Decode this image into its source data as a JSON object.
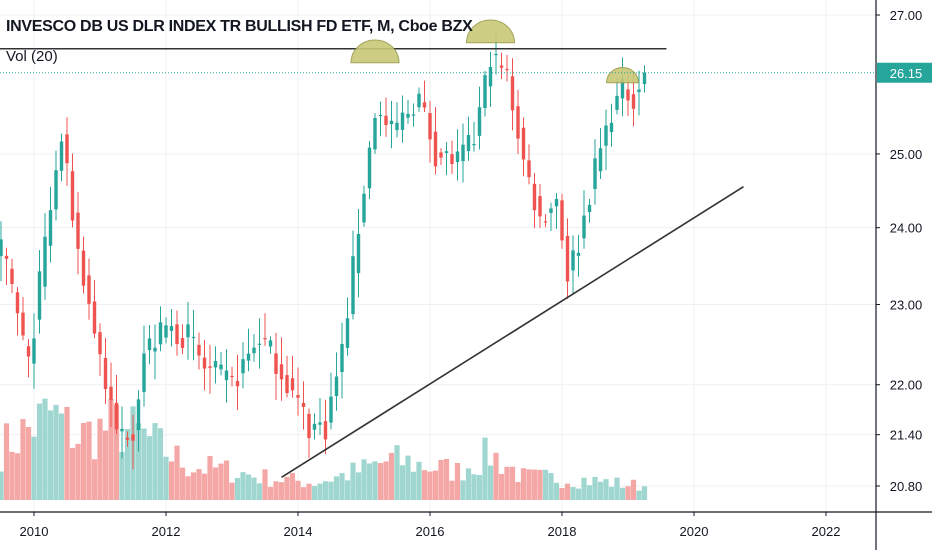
{
  "header": {
    "title": "INVESCO DB US DLR INDEX TR BULLISH FD ETF, M, Cboe BZX",
    "volume_label": "Vol (20)"
  },
  "colors": {
    "up": "#26a69a",
    "down": "#ef5350",
    "vol_up": "#9fd7d0",
    "vol_down": "#f5a7a6",
    "price_badge": "#26a69a",
    "marker_fill": "#c8c876",
    "drawing_line": "#333333",
    "grid": "#eef0f3"
  },
  "chart_data": {
    "type": "candlestick",
    "y_axis": {
      "ticks": [
        {
          "value": 27.0,
          "label": "27.00"
        },
        {
          "value": 25.0,
          "label": "25.00"
        },
        {
          "value": 24.0,
          "label": "24.00"
        },
        {
          "value": 23.0,
          "label": "23.00"
        },
        {
          "value": 22.0,
          "label": "22.00"
        },
        {
          "value": 21.4,
          "label": "21.40"
        },
        {
          "value": 20.8,
          "label": "20.80"
        }
      ],
      "scale": "log"
    },
    "x_axis": {
      "ticks": [
        "2010",
        "2012",
        "2014",
        "2016",
        "2018",
        "2020",
        "2022"
      ]
    },
    "last_price": {
      "value": 26.15,
      "label": "26.15"
    },
    "resistance_level": 26.5,
    "trendline": {
      "start": {
        "date": "2013-10",
        "price": 20.9
      },
      "end": {
        "date": "2020-10",
        "price": 24.55
      }
    },
    "peak_markers": [
      "2015-03",
      "2016-12",
      "2018-12"
    ],
    "anchors": [
      [
        "2009-07",
        23.7
      ],
      [
        "2009-09",
        23.2
      ],
      [
        "2009-12",
        22.2
      ],
      [
        "2010-03",
        23.8
      ],
      [
        "2010-06",
        25.2
      ],
      [
        "2010-09",
        23.7
      ],
      [
        "2010-11",
        23.0
      ],
      [
        "2011-04",
        21.4
      ],
      [
        "2011-07",
        21.5
      ],
      [
        "2011-09",
        22.4
      ],
      [
        "2012-01",
        22.7
      ],
      [
        "2012-05",
        22.6
      ],
      [
        "2012-08",
        22.2
      ],
      [
        "2013-01",
        22.0
      ],
      [
        "2013-06",
        22.6
      ],
      [
        "2013-09",
        22.3
      ],
      [
        "2014-03",
        21.5
      ],
      [
        "2014-06",
        21.5
      ],
      [
        "2014-09",
        22.4
      ],
      [
        "2014-12",
        24.0
      ],
      [
        "2015-03",
        25.6
      ],
      [
        "2015-06",
        25.3
      ],
      [
        "2015-11",
        25.8
      ],
      [
        "2016-02",
        25.0
      ],
      [
        "2016-06",
        24.9
      ],
      [
        "2016-09",
        25.2
      ],
      [
        "2016-12",
        26.4
      ],
      [
        "2017-03",
        26.1
      ],
      [
        "2017-06",
        24.9
      ],
      [
        "2017-09",
        24.1
      ],
      [
        "2017-12",
        24.4
      ],
      [
        "2018-02",
        23.4
      ],
      [
        "2018-04",
        23.8
      ],
      [
        "2018-07",
        24.8
      ],
      [
        "2018-10",
        25.6
      ],
      [
        "2018-12",
        25.9
      ],
      [
        "2019-02",
        25.8
      ],
      [
        "2019-04",
        26.15
      ]
    ],
    "volume_profile": [
      [
        "2009-07",
        0.45
      ],
      [
        "2010-04",
        0.75
      ],
      [
        "2010-09",
        0.55
      ],
      [
        "2011-04",
        0.65
      ],
      [
        "2011-09",
        0.55
      ],
      [
        "2012-05",
        0.3
      ],
      [
        "2013-01",
        0.25
      ],
      [
        "2013-06",
        0.2
      ],
      [
        "2014-04",
        0.15
      ],
      [
        "2014-12",
        0.25
      ],
      [
        "2015-06",
        0.35
      ],
      [
        "2016-06",
        0.25
      ],
      [
        "2016-12",
        0.4
      ],
      [
        "2017-06",
        0.2
      ],
      [
        "2018-04",
        0.18
      ],
      [
        "2019-04",
        0.12
      ]
    ]
  }
}
